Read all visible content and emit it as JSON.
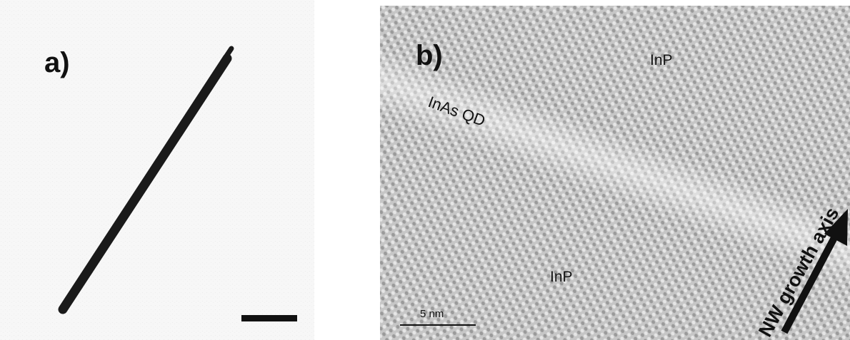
{
  "panel_a": {
    "label": "a)"
  },
  "panel_b": {
    "label": "b)",
    "region_top": "InP",
    "region_bottom": "InP",
    "quantum_dot_label": "InAs QD",
    "scale_bar_text": "5 nm",
    "growth_axis_label": "NW growth axis"
  },
  "colors": {
    "background_a": "#fafafa",
    "background_b": "#c9c9c9",
    "nanowire": "#1a1a1a",
    "text": "#111111"
  }
}
